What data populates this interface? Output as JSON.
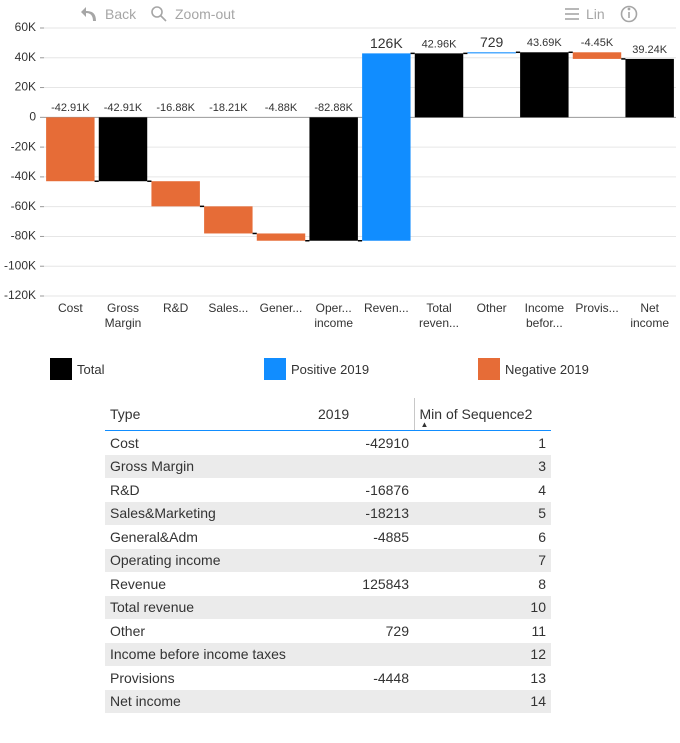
{
  "toolbar": {
    "back": "Back",
    "zoom_out": "Zoom-out",
    "scale": "Lin"
  },
  "chart_data": {
    "type": "waterfall",
    "categories": [
      "Cost",
      "Gross Margin",
      "R&D",
      "Sales...",
      "Gener...",
      "Oper... income",
      "Reven...",
      "Total reven...",
      "Other",
      "Income befor...",
      "Provis...",
      "Net income"
    ],
    "series": [
      {
        "name": "Total",
        "color": "#000000",
        "values": [
          null,
          -42910,
          null,
          null,
          null,
          -82884,
          null,
          42959,
          null,
          43688,
          null,
          39240
        ],
        "value_labels": [
          null,
          "-42.91K",
          null,
          null,
          null,
          "-82.88K",
          null,
          "42.96K",
          null,
          "43.69K",
          null,
          "39.24K"
        ]
      },
      {
        "name": "Positive 2019",
        "color": "#118dff",
        "values": [
          null,
          null,
          null,
          null,
          null,
          null,
          125843,
          null,
          729,
          null,
          null,
          null
        ],
        "value_labels": [
          null,
          null,
          null,
          null,
          null,
          null,
          "126K",
          null,
          "729",
          null,
          null,
          null
        ]
      },
      {
        "name": "Negative 2019",
        "color": "#e66c37",
        "values": [
          -42910,
          null,
          -16876,
          -18213,
          -4885,
          null,
          null,
          null,
          null,
          null,
          -4448,
          null
        ],
        "value_labels": [
          "-42.91K",
          null,
          "-16.88K",
          "-18.21K",
          "-4.88K",
          null,
          null,
          null,
          null,
          null,
          "-4.45K",
          null
        ]
      }
    ],
    "ylim": [
      -120000,
      60000
    ],
    "yticks": [
      {
        "value": -120000,
        "label": "-120K"
      },
      {
        "value": -100000,
        "label": "-100K"
      },
      {
        "value": -80000,
        "label": "-80K"
      },
      {
        "value": -60000,
        "label": "-60K"
      },
      {
        "value": -40000,
        "label": "-40K"
      },
      {
        "value": -20000,
        "label": "-20K"
      },
      0,
      {
        "value": 20000,
        "label": "20K"
      },
      {
        "value": 40000,
        "label": "40K"
      },
      {
        "value": 60000,
        "label": "60K"
      }
    ],
    "grid": true
  },
  "table": {
    "header": [
      "Type",
      "2019",
      "Min of Sequence2"
    ],
    "rows": [
      [
        "Cost",
        "-42910",
        "1"
      ],
      [
        "Gross Margin",
        null,
        "3"
      ],
      [
        "R&D",
        "-16876",
        "4"
      ],
      [
        "Sales&Marketing",
        "-18213",
        "5"
      ],
      [
        "General&Adm",
        "-4885",
        "6"
      ],
      [
        "Operating income",
        null,
        "7"
      ],
      [
        "Revenue",
        "125843",
        "8"
      ],
      [
        "Total revenue",
        null,
        "10"
      ],
      [
        "Other",
        "729",
        "11"
      ],
      [
        "Income before income taxes",
        null,
        "12"
      ],
      [
        "Provisions",
        "-4448",
        "13"
      ],
      [
        "Net income",
        null,
        "14"
      ]
    ]
  }
}
